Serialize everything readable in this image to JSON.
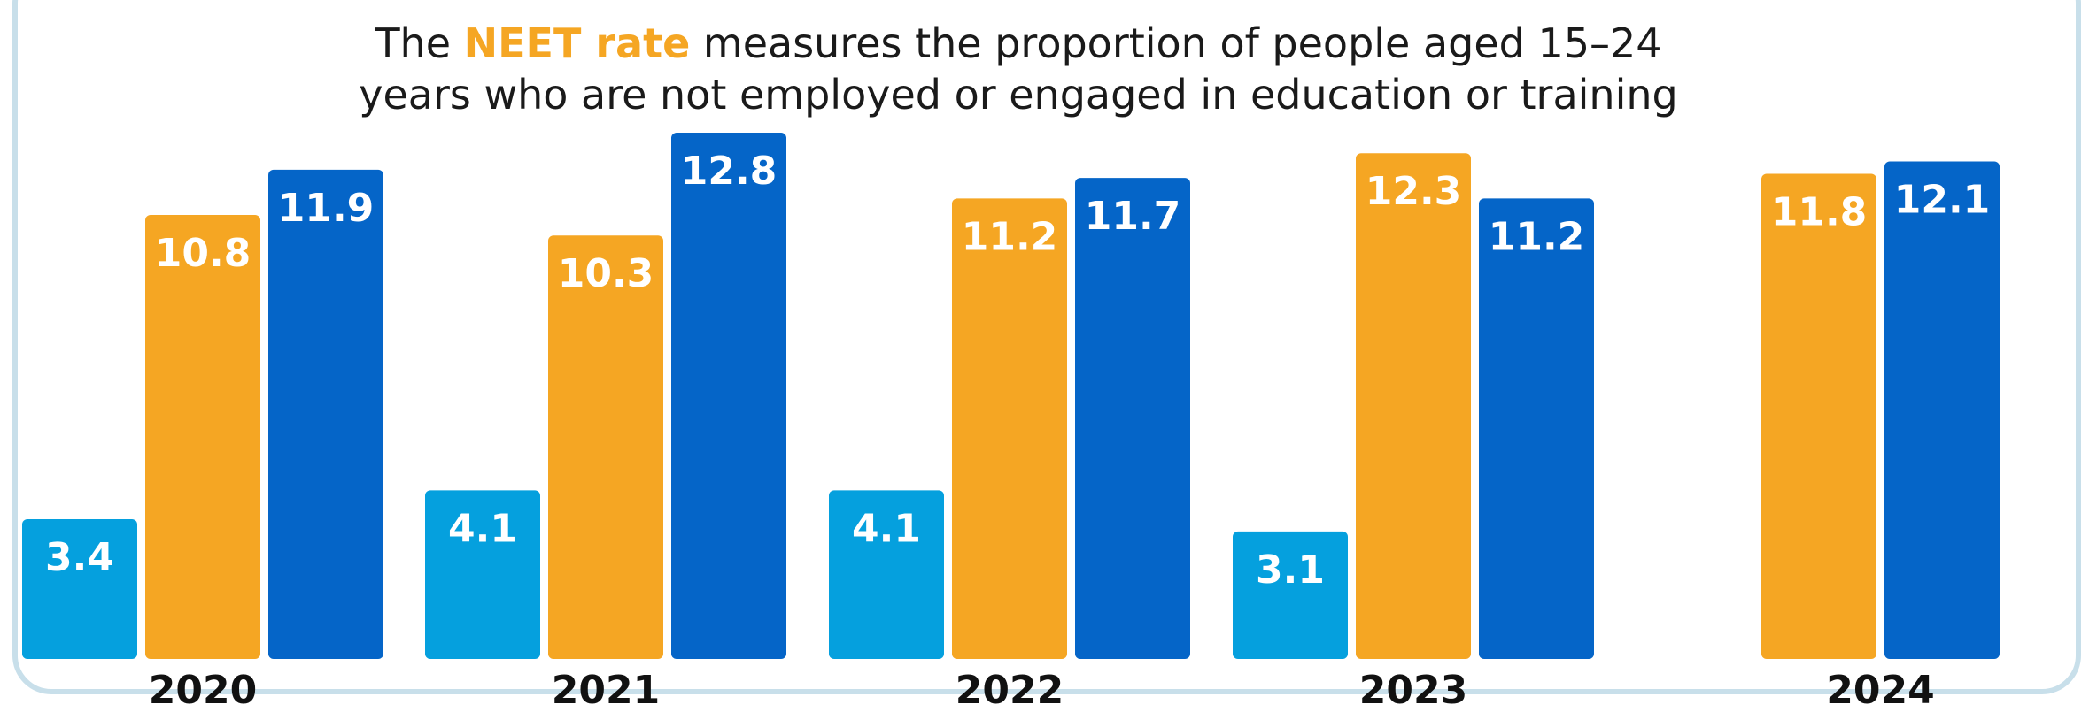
{
  "title": {
    "prefix": "The ",
    "highlight": "NEET rate",
    "line1_rest": " measures the proportion of people aged 15–24",
    "line2": "years who are not employed or engaged in education or training"
  },
  "colors": {
    "series1": "#05a0de",
    "series2": "#f5a623",
    "series3": "#0565c8",
    "highlight": "#f5a623",
    "frame": "#c8dfea"
  },
  "chart_data": {
    "type": "bar",
    "categories": [
      "2020",
      "2021",
      "2022",
      "2023",
      "2024"
    ],
    "series": [
      {
        "color": "#05a0de",
        "values": [
          3.4,
          4.1,
          4.1,
          3.1,
          null
        ]
      },
      {
        "color": "#f5a623",
        "values": [
          10.8,
          10.3,
          11.2,
          12.3,
          11.8
        ]
      },
      {
        "color": "#0565c8",
        "values": [
          11.9,
          12.8,
          11.7,
          11.2,
          12.1
        ]
      }
    ],
    "ylim": [
      0,
      12.8
    ],
    "grid": false,
    "legend": "none"
  }
}
